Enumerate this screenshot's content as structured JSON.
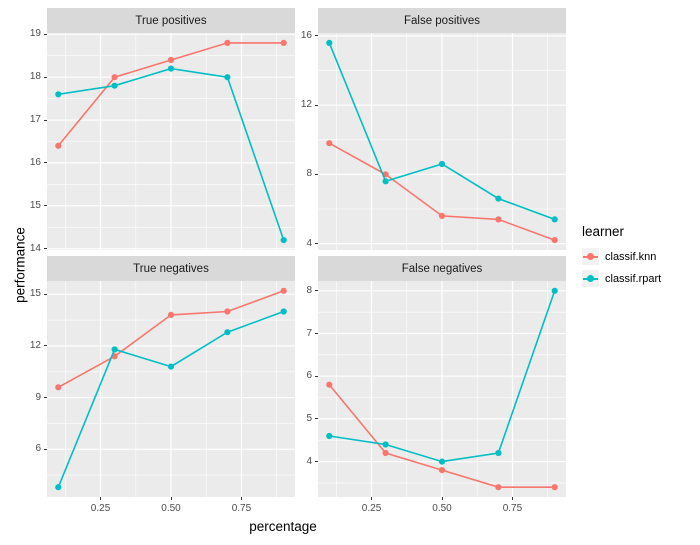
{
  "figure": {
    "ylabel": "performance",
    "xlabel": "percentage",
    "background": "#FFFFFF",
    "panel_bg": "#EBEBEB",
    "strip_bg": "#D9D9D9",
    "grid_color": "#FFFFFF",
    "tick_color": "#333333",
    "tick_label_color": "#4D4D4D"
  },
  "legend": {
    "title": "learner",
    "key_bg": "#F2F2F2",
    "entries": [
      {
        "label": "classif.knn",
        "color": "#F8766D"
      },
      {
        "label": "classif.rpart",
        "color": "#00BFC4"
      }
    ]
  },
  "chart_data": [
    {
      "type": "line",
      "title": "True positives",
      "x": [
        0.1,
        0.3,
        0.5,
        0.7,
        0.9
      ],
      "xticks": [
        0.25,
        0.5,
        0.75
      ],
      "xtick_labels": [
        "0.25",
        "0.50",
        "0.75"
      ],
      "yticks": [
        14,
        15,
        16,
        17,
        18,
        19
      ],
      "series": [
        {
          "name": "classif.knn",
          "values": [
            16.4,
            18.0,
            18.4,
            18.8,
            18.8
          ]
        },
        {
          "name": "classif.rpart",
          "values": [
            17.6,
            17.8,
            18.2,
            18.0,
            14.2
          ]
        }
      ]
    },
    {
      "type": "line",
      "title": "False positives",
      "x": [
        0.1,
        0.3,
        0.5,
        0.7,
        0.9
      ],
      "xticks": [
        0.25,
        0.5,
        0.75
      ],
      "xtick_labels": [
        "0.25",
        "0.50",
        "0.75"
      ],
      "yticks": [
        4,
        8,
        12,
        16
      ],
      "series": [
        {
          "name": "classif.knn",
          "values": [
            9.8,
            8.0,
            5.6,
            5.4,
            4.2
          ]
        },
        {
          "name": "classif.rpart",
          "values": [
            15.6,
            7.6,
            8.6,
            6.6,
            5.4
          ]
        }
      ]
    },
    {
      "type": "line",
      "title": "True negatives",
      "x": [
        0.1,
        0.3,
        0.5,
        0.7,
        0.9
      ],
      "xticks": [
        0.25,
        0.5,
        0.75
      ],
      "xtick_labels": [
        "0.25",
        "0.50",
        "0.75"
      ],
      "yticks": [
        6,
        9,
        12,
        15
      ],
      "series": [
        {
          "name": "classif.knn",
          "values": [
            9.6,
            11.4,
            13.8,
            14.0,
            15.2
          ]
        },
        {
          "name": "classif.rpart",
          "values": [
            3.8,
            11.8,
            10.8,
            12.8,
            14.0
          ]
        }
      ]
    },
    {
      "type": "line",
      "title": "False negatives",
      "x": [
        0.1,
        0.3,
        0.5,
        0.7,
        0.9
      ],
      "xticks": [
        0.25,
        0.5,
        0.75
      ],
      "xtick_labels": [
        "0.25",
        "0.50",
        "0.75"
      ],
      "yticks": [
        4,
        5,
        6,
        7,
        8
      ],
      "series": [
        {
          "name": "classif.knn",
          "values": [
            5.8,
            4.2,
            3.8,
            3.4,
            3.4
          ]
        },
        {
          "name": "classif.rpart",
          "values": [
            4.6,
            4.4,
            4.0,
            4.2,
            8.0
          ]
        }
      ]
    }
  ]
}
